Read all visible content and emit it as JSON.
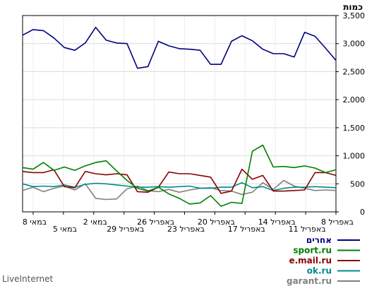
{
  "chart_data": {
    "type": "line",
    "title": "כמות",
    "ylim": [
      0,
      3500
    ],
    "y_ticks": [
      0,
      500,
      1000,
      1500,
      2000,
      2500,
      3000,
      3500
    ],
    "y_tick_labels": [
      "0",
      "500",
      "1,000",
      "1,500",
      "2,000",
      "2,500",
      "3,000",
      "3,500"
    ],
    "x_axis_direction": "right-to-left",
    "x_tick_labels": [
      "8 במאי",
      "5 במאי",
      "2 במאי",
      "29 באפריל",
      "26 באפריל",
      "23 באפריל",
      "20 באפריל",
      "17 באפריל",
      "14 באפריל",
      "11 באפריל",
      "8 באפריל"
    ],
    "grid": true,
    "legend_position": "bottom-right",
    "series": [
      {
        "name": "אחרים",
        "color": "#000080",
        "values": [
          3150,
          3250,
          3230,
          3100,
          2930,
          2880,
          3010,
          3290,
          3060,
          3010,
          3000,
          2560,
          2590,
          3040,
          2960,
          2910,
          2900,
          2880,
          2630,
          2630,
          3040,
          3140,
          3050,
          2900,
          2820,
          2820,
          2760,
          3200,
          3130,
          2920,
          2700
        ]
      },
      {
        "name": "sport.ru",
        "color": "#008000",
        "values": [
          790,
          760,
          880,
          740,
          800,
          740,
          820,
          880,
          910,
          730,
          560,
          420,
          370,
          440,
          320,
          240,
          140,
          160,
          290,
          100,
          170,
          150,
          1080,
          1190,
          800,
          810,
          790,
          820,
          780,
          700,
          750
        ]
      },
      {
        "name": "e.mail.ru",
        "color": "#8b0000",
        "values": [
          720,
          700,
          700,
          750,
          450,
          430,
          720,
          680,
          660,
          680,
          660,
          360,
          350,
          440,
          710,
          680,
          680,
          650,
          620,
          330,
          370,
          760,
          580,
          650,
          370,
          370,
          380,
          390,
          700,
          700,
          650
        ]
      },
      {
        "name": "ok.ru",
        "color": "#008b8b",
        "values": [
          500,
          450,
          460,
          450,
          480,
          440,
          490,
          510,
          500,
          480,
          460,
          440,
          440,
          450,
          440,
          450,
          460,
          420,
          420,
          440,
          440,
          520,
          430,
          450,
          380,
          420,
          440,
          440,
          450,
          440,
          430
        ]
      },
      {
        "name": "garant.ru",
        "color": "#808080",
        "values": [
          380,
          440,
          360,
          420,
          460,
          390,
          500,
          240,
          220,
          230,
          410,
          460,
          380,
          360,
          400,
          350,
          390,
          420,
          430,
          380,
          370,
          310,
          350,
          520,
          400,
          560,
          460,
          420,
          380,
          390,
          380
        ]
      }
    ]
  },
  "watermark": "LiveInternet"
}
